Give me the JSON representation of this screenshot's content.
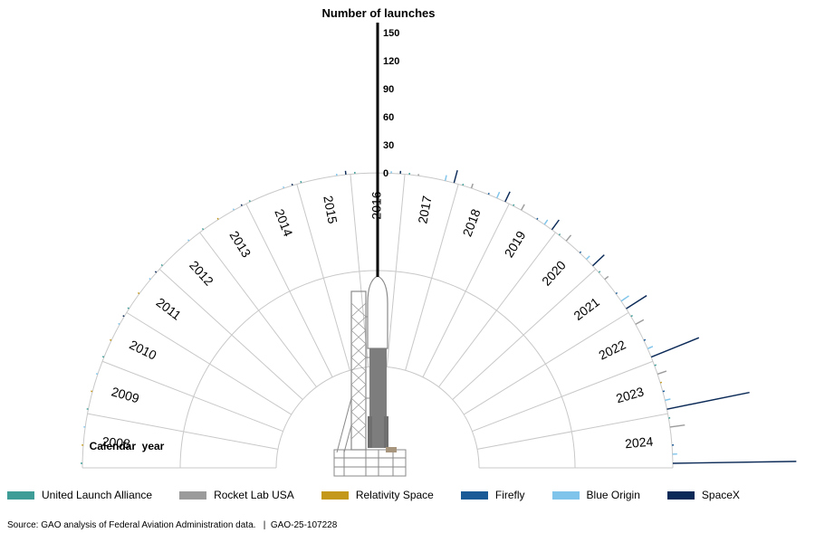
{
  "chart_data": {
    "type": "bar",
    "variant": "radial bar",
    "title": "Number of launches",
    "category_label": "Calendar  year",
    "radial_ticks": [
      0,
      30,
      60,
      90,
      120,
      150
    ],
    "rmax": 150,
    "categories": [
      "2008",
      "2009",
      "2010",
      "2011",
      "2012",
      "2013",
      "2014",
      "2015",
      "2016",
      "2017",
      "2018",
      "2019",
      "2020",
      "2021",
      "2022",
      "2023",
      "2024"
    ],
    "series": [
      {
        "name": "United Launch Alliance",
        "color": "#3e9d96",
        "values": [
          2,
          1,
          1,
          1,
          1,
          1,
          1,
          2,
          2,
          1,
          1,
          1,
          1,
          2,
          2,
          2,
          1
        ]
      },
      {
        "name": "Rocket Lab USA",
        "color": "#9b9b9b",
        "values": [
          0,
          0,
          0,
          0,
          0,
          0,
          0,
          0,
          0,
          1,
          5,
          7,
          8,
          5,
          10,
          10,
          16
        ]
      },
      {
        "name": "Relativity Space",
        "color": "#c4981b",
        "values": [
          1,
          1,
          1,
          1,
          0,
          1,
          0,
          0,
          0,
          0,
          0,
          0,
          0,
          0,
          0,
          1,
          0
        ]
      },
      {
        "name": "Firefly",
        "color": "#1a5a96",
        "values": [
          0,
          0,
          0,
          0,
          0,
          0,
          0,
          0,
          0,
          0,
          1,
          1,
          1,
          1,
          2,
          2,
          2
        ]
      },
      {
        "name": "Blue Origin",
        "color": "#7fc4ea",
        "values": [
          1,
          1,
          1,
          1,
          1,
          1,
          1,
          2,
          2,
          6,
          7,
          6,
          5,
          10,
          6,
          6,
          5
        ]
      },
      {
        "name": "SpaceX",
        "color": "#0b2a57",
        "values": [
          0,
          0,
          1,
          1,
          0,
          1,
          1,
          4,
          3,
          14,
          12,
          13,
          17,
          26,
          55,
          90,
          132
        ]
      }
    ]
  },
  "source": "Source: GAO analysis of Federal Aviation Administration data.   |  GAO-25-107228"
}
